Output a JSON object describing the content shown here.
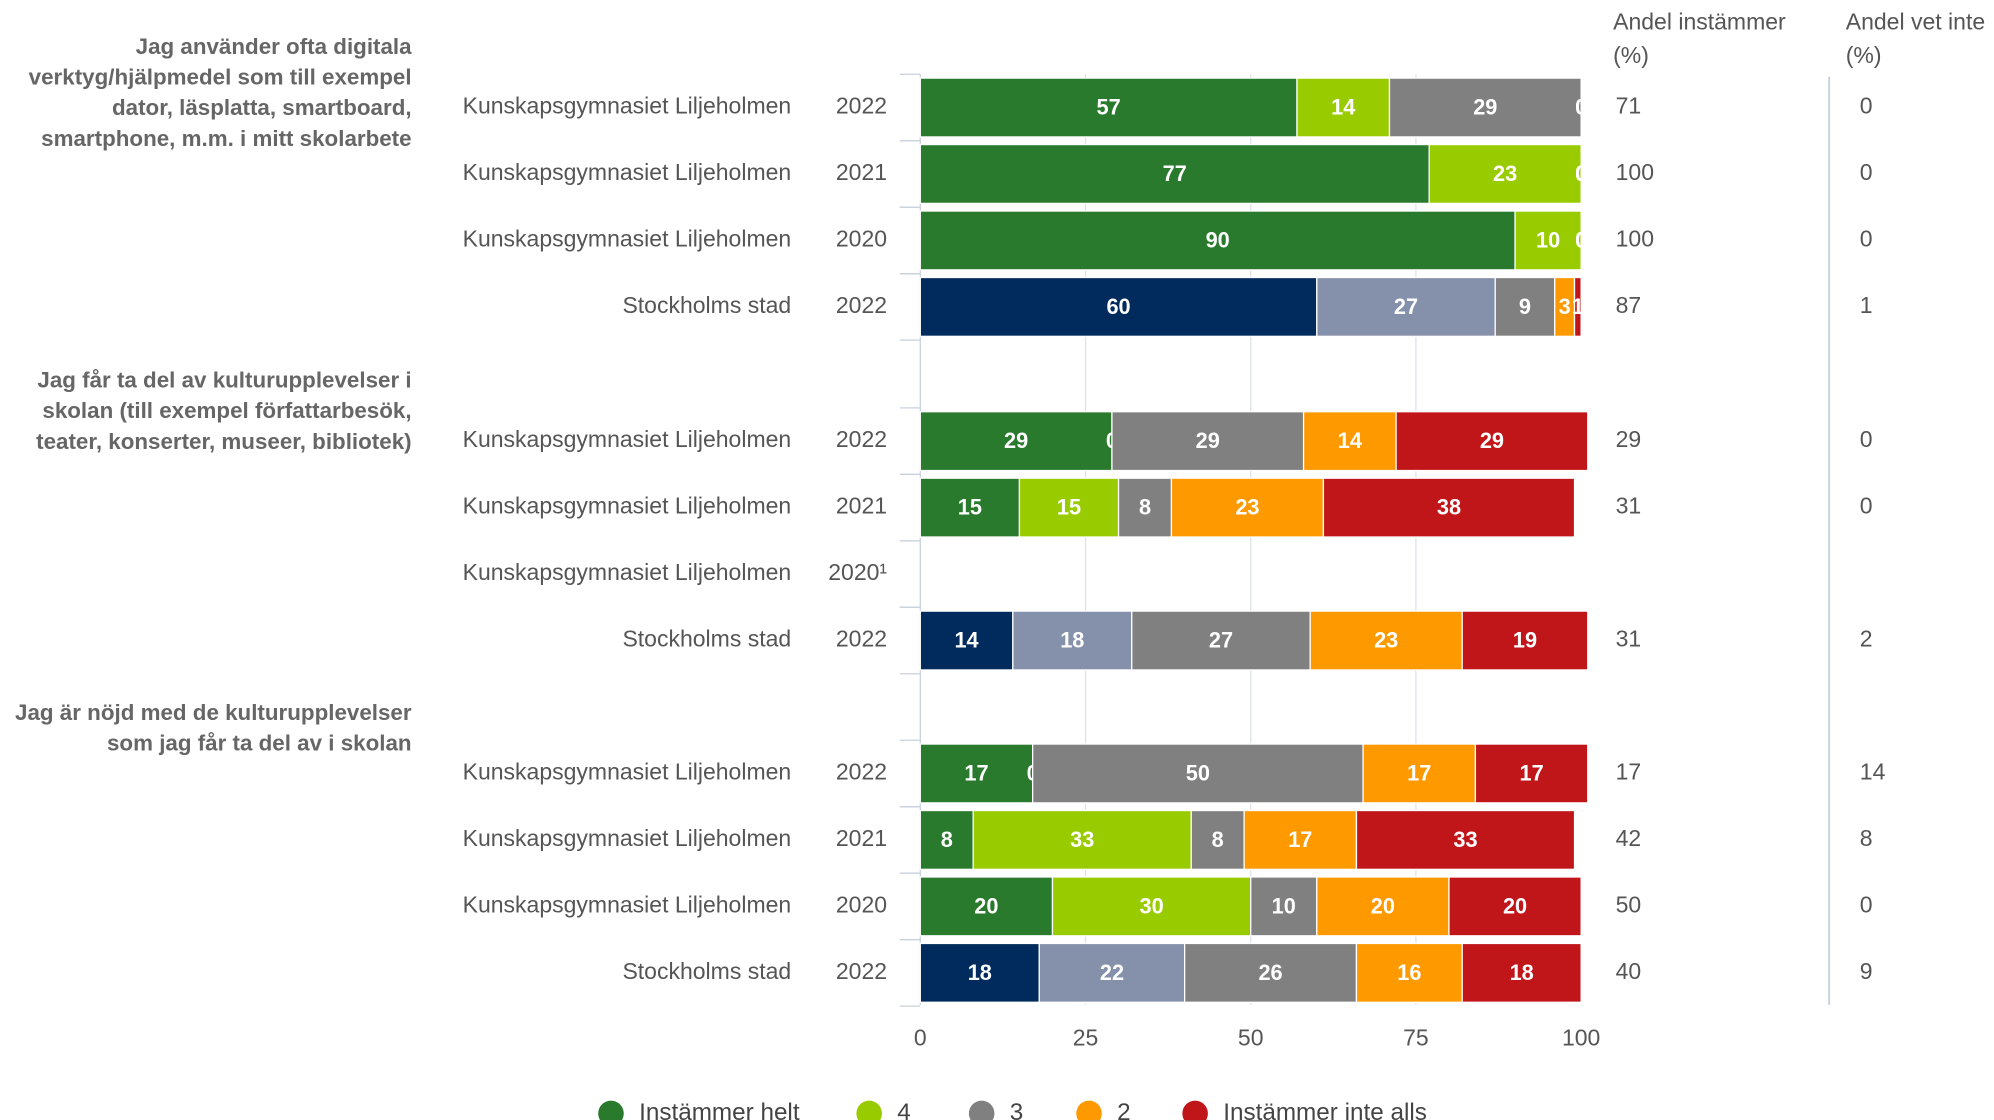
{
  "chart_data": {
    "type": "stacked_bar_h",
    "columns": [
      "Andel instämmer (%)",
      "Andel vet inte (%)"
    ],
    "xlim": [
      0,
      100
    ],
    "xticks": [
      0,
      25,
      50,
      75,
      100
    ],
    "grid": true,
    "legend": [
      {
        "name": "Instämmer helt",
        "color": "#2a7a2e"
      },
      {
        "name": "4",
        "color": "#99cc00"
      },
      {
        "name": "3",
        "color": "#808080"
      },
      {
        "name": "2",
        "color": "#ff9900"
      },
      {
        "name": "Instämmer inte alls",
        "color": "#c0161a"
      }
    ],
    "groups": [
      {
        "title": "Jag använder ofta digitala verktyg/hjälpmedel som till exempel dator, läsplatta, smartboard, smartphone, m.m. i mitt skolarbete",
        "rows": [
          {
            "label": "Kunskapsgymnasiet Liljeholmen",
            "year": "2022",
            "values": [
              57,
              14,
              29,
              0,
              0
            ],
            "colors": [
              "#2a7a2e",
              "#99cc00",
              "#808080",
              "#ff9900",
              "#c0161a"
            ],
            "agree": 71,
            "dont_know": 0
          },
          {
            "label": "Kunskapsgymnasiet Liljeholmen",
            "year": "2021",
            "values": [
              77,
              23,
              0,
              0,
              0
            ],
            "colors": [
              "#2a7a2e",
              "#99cc00",
              "#808080",
              "#ff9900",
              "#c0161a"
            ],
            "agree": 100,
            "dont_know": 0
          },
          {
            "label": "Kunskapsgymnasiet Liljeholmen",
            "year": "2020",
            "values": [
              90,
              10,
              0,
              0,
              0
            ],
            "colors": [
              "#2a7a2e",
              "#99cc00",
              "#808080",
              "#ff9900",
              "#c0161a"
            ],
            "agree": 100,
            "dont_know": 0
          },
          {
            "label": "Stockholms stad",
            "year": "2022",
            "values": [
              60,
              27,
              9,
              3,
              1
            ],
            "colors": [
              "#002b5c",
              "#8591aa",
              "#808080",
              "#ff9900",
              "#c0161a"
            ],
            "agree": 87,
            "dont_know": 1
          }
        ]
      },
      {
        "title": "Jag får ta del av kulturupplevelser i skolan (till exempel författarbesök, teater, konserter, museer, bibliotek)",
        "rows": [
          {
            "label": "Kunskapsgymnasiet Liljeholmen",
            "year": "2022",
            "values": [
              29,
              0,
              29,
              14,
              29
            ],
            "colors": [
              "#2a7a2e",
              "#99cc00",
              "#808080",
              "#ff9900",
              "#c0161a"
            ],
            "agree": 29,
            "dont_know": 0
          },
          {
            "label": "Kunskapsgymnasiet Liljeholmen",
            "year": "2021",
            "values": [
              15,
              15,
              8,
              23,
              38
            ],
            "colors": [
              "#2a7a2e",
              "#99cc00",
              "#808080",
              "#ff9900",
              "#c0161a"
            ],
            "agree": 31,
            "dont_know": 0
          },
          {
            "label": "Kunskapsgymnasiet Liljeholmen",
            "year": "2020¹",
            "values": [
              null,
              null,
              null,
              null,
              null
            ],
            "colors": [
              "#2a7a2e",
              "#99cc00",
              "#808080",
              "#ff9900",
              "#c0161a"
            ],
            "agree": null,
            "dont_know": null
          },
          {
            "label": "Stockholms stad",
            "year": "2022",
            "values": [
              14,
              18,
              27,
              23,
              19
            ],
            "colors": [
              "#002b5c",
              "#8591aa",
              "#808080",
              "#ff9900",
              "#c0161a"
            ],
            "agree": 31,
            "dont_know": 2
          }
        ]
      },
      {
        "title": "Jag är nöjd med de kulturupplevelser som jag får ta del av i skolan",
        "rows": [
          {
            "label": "Kunskapsgymnasiet Liljeholmen",
            "year": "2022",
            "values": [
              17,
              0,
              50,
              17,
              17
            ],
            "colors": [
              "#2a7a2e",
              "#99cc00",
              "#808080",
              "#ff9900",
              "#c0161a"
            ],
            "agree": 17,
            "dont_know": 14
          },
          {
            "label": "Kunskapsgymnasiet Liljeholmen",
            "year": "2021",
            "values": [
              8,
              33,
              8,
              17,
              33
            ],
            "colors": [
              "#2a7a2e",
              "#99cc00",
              "#808080",
              "#ff9900",
              "#c0161a"
            ],
            "agree": 42,
            "dont_know": 8
          },
          {
            "label": "Kunskapsgymnasiet Liljeholmen",
            "year": "2020",
            "values": [
              20,
              30,
              10,
              20,
              20
            ],
            "colors": [
              "#2a7a2e",
              "#99cc00",
              "#808080",
              "#ff9900",
              "#c0161a"
            ],
            "agree": 50,
            "dont_know": 0
          },
          {
            "label": "Stockholms stad",
            "year": "2022",
            "values": [
              18,
              22,
              26,
              16,
              18
            ],
            "colors": [
              "#002b5c",
              "#8591aa",
              "#808080",
              "#ff9900",
              "#c0161a"
            ],
            "agree": 40,
            "dont_know": 9
          }
        ]
      }
    ]
  }
}
